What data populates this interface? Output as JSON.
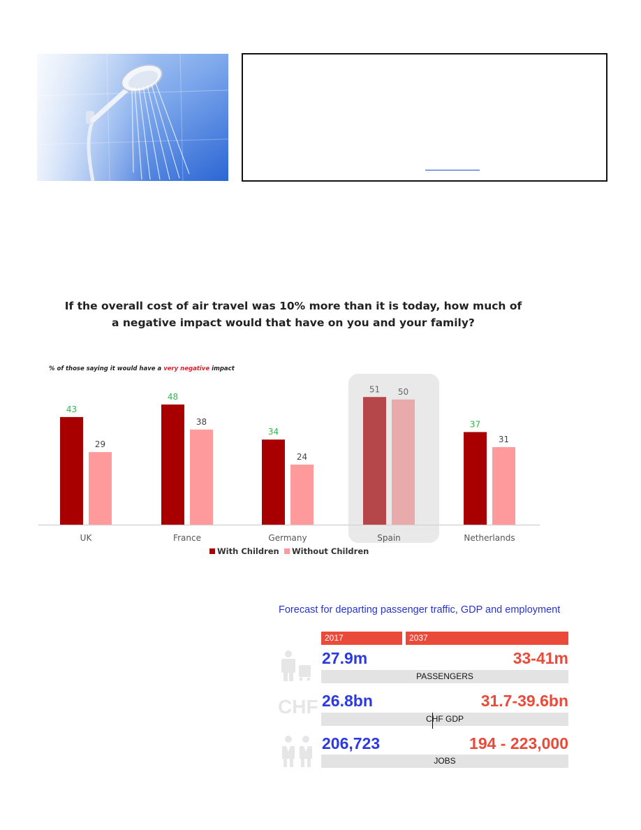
{
  "chart_data": {
    "type": "bar",
    "title": "If the overall cost of air travel was 10% more than it is today, how much of a negative impact would that have on you and your family?",
    "subtitle": {
      "prefix": "% of those saying it would have a ",
      "highlight": "very negative",
      "suffix": " impact"
    },
    "categories": [
      "UK",
      "France",
      "Germany",
      "Spain",
      "Netherlands"
    ],
    "series": [
      {
        "name": "With Children",
        "values": [
          43,
          48,
          34,
          51,
          37
        ],
        "color": "#a80000"
      },
      {
        "name": "Without Children",
        "values": [
          29,
          38,
          24,
          50,
          31
        ],
        "color": "#ff9a9c"
      }
    ],
    "highlighted_category": "Spain",
    "label_colors": {
      "with_children": "#2db84b",
      "without_children": "#444444"
    },
    "ylim": [
      0,
      60
    ],
    "legend": "bottom"
  },
  "forecast": {
    "title": "Forecast for departing passenger traffic, GDP and employment",
    "years": [
      "2017",
      "2037"
    ],
    "rows": [
      {
        "icon": "passenger-luggage-icon",
        "value_2017": "27.9m",
        "value_2037": "33-41m",
        "label": "PASSENGERS"
      },
      {
        "icon": "chf-icon",
        "icon_text": "CHF",
        "value_2017": "26.8bn",
        "value_2037": "31.7-39.6bn",
        "label": "CHF GDP"
      },
      {
        "icon": "workers-icon",
        "value_2017": "206,723",
        "value_2037": "194 - 223,000",
        "label": "JOBS"
      }
    ],
    "colors": {
      "value_2017": "#2a3ae0",
      "value_2037": "#ea4a39",
      "year_bar": "#ea4a39",
      "label_bar": "#e3e3e3"
    }
  },
  "images": {
    "shower": "shower-head-photo"
  }
}
